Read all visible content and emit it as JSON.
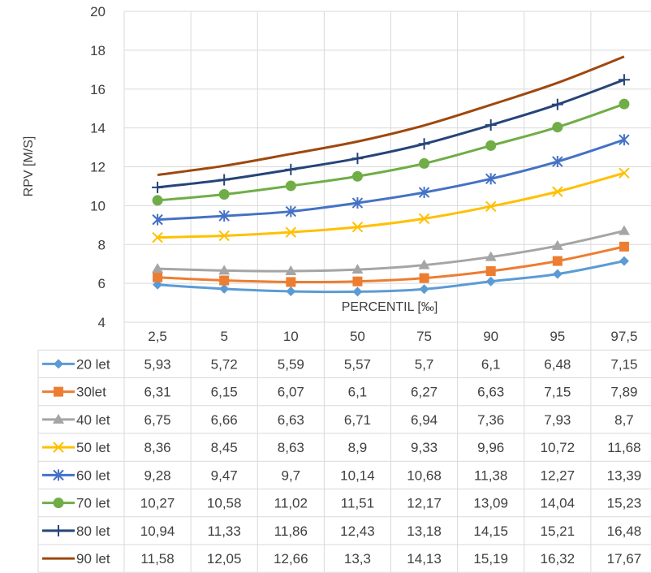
{
  "chart_data": {
    "type": "line",
    "title": "",
    "ylabel": "RPV [M/S]",
    "xlabel": "PERCENTIL [‰]",
    "ylim": [
      4,
      20
    ],
    "yticks": [
      "4",
      "6",
      "8",
      "10",
      "12",
      "14",
      "16",
      "18",
      "20"
    ],
    "grid": true,
    "categories": [
      "2,5",
      "5",
      "10",
      "50",
      "75",
      "90",
      "95",
      "97,5"
    ],
    "data_table": true,
    "series": [
      {
        "name": "20 let",
        "color": "#5B9BD5",
        "marker": "diamond",
        "values": [
          5.93,
          5.72,
          5.59,
          5.57,
          5.7,
          6.1,
          6.48,
          7.15
        ],
        "labels": [
          "5,93",
          "5,72",
          "5,59",
          "5,57",
          "5,7",
          "6,1",
          "6,48",
          "7,15"
        ]
      },
      {
        "name": "30let",
        "color": "#ED7D31",
        "marker": "square",
        "values": [
          6.31,
          6.15,
          6.07,
          6.1,
          6.27,
          6.63,
          7.15,
          7.89
        ],
        "labels": [
          "6,31",
          "6,15",
          "6,07",
          "6,1",
          "6,27",
          "6,63",
          "7,15",
          "7,89"
        ]
      },
      {
        "name": "40 let",
        "color": "#A5A5A5",
        "marker": "triangle",
        "values": [
          6.75,
          6.66,
          6.63,
          6.71,
          6.94,
          7.36,
          7.93,
          8.7
        ],
        "labels": [
          "6,75",
          "6,66",
          "6,63",
          "6,71",
          "6,94",
          "7,36",
          "7,93",
          "8,7"
        ]
      },
      {
        "name": "50 let",
        "color": "#FFC000",
        "marker": "x",
        "values": [
          8.36,
          8.45,
          8.63,
          8.9,
          9.33,
          9.96,
          10.72,
          11.68
        ],
        "labels": [
          "8,36",
          "8,45",
          "8,63",
          "8,9",
          "9,33",
          "9,96",
          "10,72",
          "11,68"
        ]
      },
      {
        "name": "60 let",
        "color": "#4472C4",
        "marker": "star",
        "values": [
          9.28,
          9.47,
          9.7,
          10.14,
          10.68,
          11.38,
          12.27,
          13.39
        ],
        "labels": [
          "9,28",
          "9,47",
          "9,7",
          "10,14",
          "10,68",
          "11,38",
          "12,27",
          "13,39"
        ]
      },
      {
        "name": "70 let",
        "color": "#70AD47",
        "marker": "circle",
        "values": [
          10.27,
          10.58,
          11.02,
          11.51,
          12.17,
          13.09,
          14.04,
          15.23
        ],
        "labels": [
          "10,27",
          "10,58",
          "11,02",
          "11,51",
          "12,17",
          "13,09",
          "14,04",
          "15,23"
        ]
      },
      {
        "name": "80 let",
        "color": "#264478",
        "marker": "plus",
        "values": [
          10.94,
          11.33,
          11.86,
          12.43,
          13.18,
          14.15,
          15.21,
          16.48
        ],
        "labels": [
          "10,94",
          "11,33",
          "11,86",
          "12,43",
          "13,18",
          "14,15",
          "15,21",
          "16,48"
        ]
      },
      {
        "name": "90 let",
        "color": "#9E480E",
        "marker": "none",
        "values": [
          11.58,
          12.05,
          12.66,
          13.3,
          14.13,
          15.19,
          16.32,
          17.67
        ],
        "labels": [
          "11,58",
          "12,05",
          "12,66",
          "13,3",
          "14,13",
          "15,19",
          "16,32",
          "17,67"
        ]
      }
    ]
  }
}
